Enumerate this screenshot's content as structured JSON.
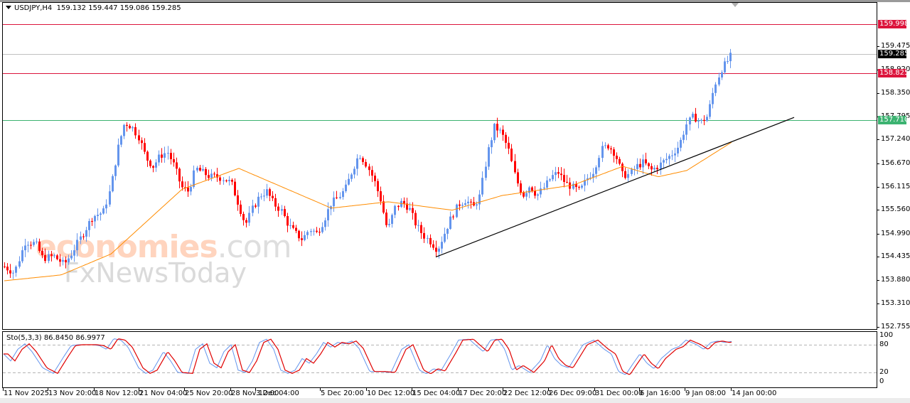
{
  "window": {
    "symbol_label": "USDJPY,H4",
    "ohlc_label": "159.132 159.447 159.086 159.285"
  },
  "indicator": {
    "label": "Sto(5,3,3) 86.8450 86.9977",
    "levels": [
      "100",
      "80",
      "20",
      "0"
    ]
  },
  "watermark": {
    "line1_main": "economies",
    "line1_suffix": ".com",
    "line2": "FxNewsToday"
  },
  "price_axis": {
    "ticks": [
      "159.475",
      "158.920",
      "158.350",
      "157.795",
      "157.240",
      "156.670",
      "156.115",
      "155.560",
      "154.990",
      "154.435",
      "153.880",
      "153.310",
      "152.755"
    ]
  },
  "price_levels": [
    {
      "name": "resistance-2",
      "value": "159.998",
      "color": "#dc143c"
    },
    {
      "name": "current-price",
      "value": "159.285",
      "color": "#000000"
    },
    {
      "name": "resistance-1",
      "value": "158.825",
      "color": "#dc143c"
    },
    {
      "name": "support-1",
      "value": "157.710",
      "color": "#3cb371"
    }
  ],
  "time_axis": {
    "labels": [
      "11 Nov 2025",
      "13 Nov 20:00",
      "18 Nov 12:00",
      "21 Nov 04:00",
      "25 Nov 20:00",
      "28 Nov 12:00",
      "3 Dec 04:00",
      "5 Dec 20:00",
      "10 Dec 12:00",
      "15 Dec 04:00",
      "17 Dec 20:00",
      "22 Dec 12:00",
      "26 Dec 09:00",
      "31 Dec 00:00",
      "6 Jan 16:00",
      "9 Jan 08:00",
      "14 Jan 00:00"
    ]
  },
  "colors": {
    "bull": "#6495ed",
    "bear": "#ff0000",
    "ma": "#ff8c00",
    "stoch_main": "#6495ed",
    "stoch_signal": "#e00000",
    "trendline": "#000000"
  },
  "chart_data": [
    {
      "type": "candlestick",
      "title": "USDJPY,H4",
      "ohlc_last": {
        "open": 159.132,
        "high": 159.447,
        "low": 159.086,
        "close": 159.285
      },
      "ylim": [
        152.755,
        160.2
      ],
      "x_labels": [
        "11 Nov 2025",
        "13 Nov 20:00",
        "18 Nov 12:00",
        "21 Nov 04:00",
        "25 Nov 20:00",
        "28 Nov 12:00",
        "3 Dec 04:00",
        "5 Dec 20:00",
        "10 Dec 12:00",
        "15 Dec 04:00",
        "17 Dec 20:00",
        "22 Dec 12:00",
        "26 Dec 09:00",
        "31 Dec 00:00",
        "6 Jan 16:00",
        "9 Jan 08:00",
        "14 Jan 00:00"
      ],
      "horizontal_lines": [
        {
          "value": 159.998,
          "color": "#dc143c",
          "label": "159.998"
        },
        {
          "value": 159.285,
          "color": "#c0c0c0",
          "label": "159.285"
        },
        {
          "value": 158.825,
          "color": "#dc143c",
          "label": "158.825"
        },
        {
          "value": 157.71,
          "color": "#3cb371",
          "label": "157.710"
        }
      ],
      "trendline": {
        "from": {
          "x_label": "15 Dec 04:00",
          "price": 154.43
        },
        "to": {
          "x_label": "after 14 Jan 00:00",
          "price": 157.72
        }
      },
      "moving_average": {
        "color": "#ff8c00",
        "approx_path": [
          [
            0,
            153.86
          ],
          [
            80,
            154.0
          ],
          [
            150,
            154.5
          ],
          [
            250,
            156.05
          ],
          [
            330,
            156.55
          ],
          [
            460,
            155.6
          ],
          [
            540,
            155.75
          ],
          [
            630,
            155.55
          ],
          [
            700,
            155.9
          ],
          [
            800,
            156.15
          ],
          [
            870,
            156.6
          ],
          [
            920,
            156.35
          ],
          [
            960,
            156.5
          ],
          [
            1030,
            157.25
          ]
        ]
      },
      "close_path": [
        [
          6,
          154.2
        ],
        [
          20,
          154.05
        ],
        [
          35,
          154.8
        ],
        [
          50,
          154.75
        ],
        [
          60,
          154.4
        ],
        [
          75,
          154.45
        ],
        [
          90,
          154.25
        ],
        [
          100,
          154.5
        ],
        [
          115,
          154.95
        ],
        [
          130,
          155.4
        ],
        [
          145,
          155.5
        ],
        [
          155,
          156.05
        ],
        [
          165,
          157.0
        ],
        [
          175,
          157.65
        ],
        [
          185,
          157.55
        ],
        [
          195,
          157.3
        ],
        [
          205,
          156.8
        ],
        [
          215,
          156.6
        ],
        [
          225,
          156.85
        ],
        [
          235,
          156.95
        ],
        [
          245,
          156.6
        ],
        [
          255,
          156.1
        ],
        [
          265,
          156.0
        ],
        [
          275,
          156.55
        ],
        [
          285,
          156.45
        ],
        [
          295,
          156.35
        ],
        [
          305,
          156.35
        ],
        [
          315,
          156.3
        ],
        [
          325,
          156.2
        ],
        [
          335,
          155.7
        ],
        [
          345,
          155.2
        ],
        [
          355,
          155.6
        ],
        [
          365,
          155.9
        ],
        [
          375,
          156.0
        ],
        [
          385,
          155.7
        ],
        [
          395,
          155.55
        ],
        [
          405,
          155.2
        ],
        [
          415,
          155.0
        ],
        [
          425,
          154.85
        ],
        [
          435,
          155.1
        ],
        [
          445,
          155.0
        ],
        [
          455,
          155.3
        ],
        [
          465,
          155.7
        ],
        [
          475,
          155.85
        ],
        [
          485,
          156.05
        ],
        [
          495,
          156.5
        ],
        [
          505,
          156.9
        ],
        [
          515,
          156.65
        ],
        [
          525,
          156.3
        ],
        [
          535,
          155.8
        ],
        [
          545,
          155.05
        ],
        [
          555,
          155.6
        ],
        [
          565,
          155.75
        ],
        [
          575,
          155.6
        ],
        [
          585,
          155.2
        ],
        [
          595,
          154.95
        ],
        [
          605,
          154.8
        ],
        [
          615,
          154.6
        ],
        [
          625,
          155.0
        ],
        [
          635,
          155.4
        ],
        [
          645,
          155.7
        ],
        [
          655,
          155.8
        ],
        [
          665,
          155.6
        ],
        [
          675,
          155.9
        ],
        [
          685,
          156.9
        ],
        [
          695,
          157.55
        ],
        [
          705,
          157.4
        ],
        [
          715,
          157.0
        ],
        [
          725,
          156.3
        ],
        [
          735,
          155.9
        ],
        [
          745,
          156.15
        ],
        [
          755,
          155.9
        ],
        [
          765,
          156.1
        ],
        [
          775,
          156.35
        ],
        [
          785,
          156.45
        ],
        [
          795,
          156.2
        ],
        [
          805,
          156.1
        ],
        [
          815,
          156.0
        ],
        [
          825,
          156.3
        ],
        [
          835,
          156.5
        ],
        [
          845,
          157.0
        ],
        [
          855,
          157.1
        ],
        [
          865,
          156.9
        ],
        [
          875,
          156.4
        ],
        [
          885,
          156.4
        ],
        [
          895,
          156.6
        ],
        [
          905,
          156.7
        ],
        [
          915,
          156.5
        ],
        [
          925,
          156.6
        ],
        [
          935,
          156.75
        ],
        [
          945,
          156.9
        ],
        [
          955,
          157.1
        ],
        [
          965,
          157.6
        ],
        [
          975,
          157.8
        ],
        [
          985,
          157.65
        ],
        [
          995,
          157.8
        ],
        [
          1005,
          158.55
        ],
        [
          1015,
          158.95
        ],
        [
          1022,
          159.1
        ],
        [
          1029,
          159.285
        ]
      ]
    },
    {
      "type": "line",
      "title": "Sto(5,3,3)",
      "series": [
        {
          "name": "%K",
          "value_last": 86.845,
          "color": "#6495ed"
        },
        {
          "name": "%D",
          "value_last": 86.9977,
          "color": "#e00000"
        }
      ],
      "ylim": [
        0,
        100
      ],
      "levels": [
        20,
        80
      ],
      "approx_k": [
        [
          5,
          60
        ],
        [
          15,
          45
        ],
        [
          25,
          70
        ],
        [
          35,
          82
        ],
        [
          45,
          65
        ],
        [
          60,
          30
        ],
        [
          75,
          18
        ],
        [
          90,
          55
        ],
        [
          100,
          78
        ],
        [
          110,
          80
        ],
        [
          130,
          80
        ],
        [
          140,
          78
        ],
        [
          150,
          70
        ],
        [
          160,
          93
        ],
        [
          170,
          90
        ],
        [
          180,
          75
        ],
        [
          195,
          30
        ],
        [
          205,
          18
        ],
        [
          215,
          25
        ],
        [
          230,
          65
        ],
        [
          240,
          45
        ],
        [
          250,
          20
        ],
        [
          265,
          18
        ],
        [
          275,
          70
        ],
        [
          285,
          82
        ],
        [
          295,
          40
        ],
        [
          305,
          30
        ],
        [
          315,
          65
        ],
        [
          325,
          80
        ],
        [
          335,
          25
        ],
        [
          345,
          20
        ],
        [
          355,
          45
        ],
        [
          365,
          85
        ],
        [
          375,
          92
        ],
        [
          385,
          70
        ],
        [
          395,
          25
        ],
        [
          405,
          18
        ],
        [
          415,
          25
        ],
        [
          425,
          50
        ],
        [
          435,
          40
        ],
        [
          445,
          60
        ],
        [
          455,
          85
        ],
        [
          465,
          75
        ],
        [
          475,
          85
        ],
        [
          485,
          82
        ],
        [
          495,
          88
        ],
        [
          505,
          72
        ],
        [
          520,
          22
        ],
        [
          535,
          22
        ],
        [
          550,
          20
        ],
        [
          565,
          70
        ],
        [
          575,
          80
        ],
        [
          590,
          25
        ],
        [
          600,
          17
        ],
        [
          610,
          28
        ],
        [
          620,
          23
        ],
        [
          635,
          62
        ],
        [
          645,
          90
        ],
        [
          660,
          92
        ],
        [
          670,
          78
        ],
        [
          680,
          65
        ],
        [
          690,
          90
        ],
        [
          700,
          92
        ],
        [
          710,
          70
        ],
        [
          720,
          25
        ],
        [
          730,
          35
        ],
        [
          745,
          20
        ],
        [
          760,
          45
        ],
        [
          770,
          80
        ],
        [
          780,
          50
        ],
        [
          790,
          35
        ],
        [
          800,
          30
        ],
        [
          810,
          55
        ],
        [
          820,
          80
        ],
        [
          835,
          90
        ],
        [
          850,
          70
        ],
        [
          860,
          60
        ],
        [
          870,
          22
        ],
        [
          880,
          15
        ],
        [
          890,
          38
        ],
        [
          900,
          60
        ],
        [
          910,
          40
        ],
        [
          920,
          28
        ],
        [
          930,
          50
        ],
        [
          945,
          70
        ],
        [
          955,
          76
        ],
        [
          965,
          90
        ],
        [
          980,
          80
        ],
        [
          990,
          70
        ],
        [
          1000,
          85
        ],
        [
          1010,
          88
        ],
        [
          1020,
          85
        ],
        [
          1029,
          87
        ]
      ]
    }
  ]
}
